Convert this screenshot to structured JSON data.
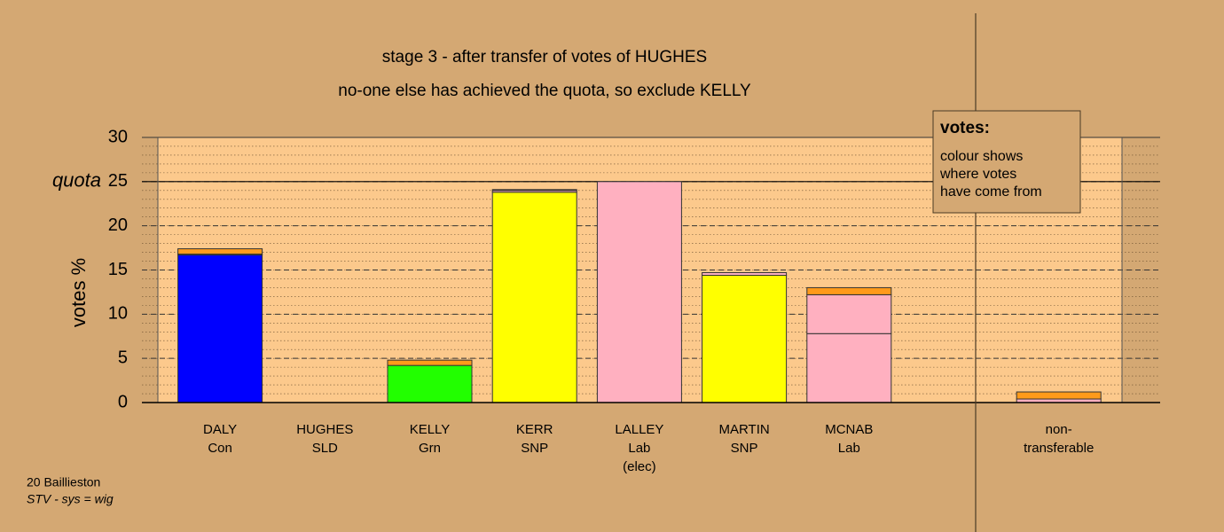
{
  "chart_data": {
    "type": "bar",
    "stacked": true,
    "title": "stage 3 - after transfer of votes of HUGHES",
    "subtitle": "no-one else has achieved the quota, so exclude KELLY",
    "y_label": "votes %",
    "categories": [
      [
        "DALY",
        "Con"
      ],
      [
        "HUGHES",
        "SLD"
      ],
      [
        "KELLY",
        "Grn"
      ],
      [
        "KERR",
        "SNP"
      ],
      [
        "LALLEY",
        "Lab",
        "(elec)"
      ],
      [
        "MARTIN",
        "SNP"
      ],
      [
        "MCNAB",
        "Lab"
      ],
      null,
      [
        "non-",
        "transferable"
      ]
    ],
    "series": [
      {
        "colors": [
          "#0000ff",
          "#ff9a1a",
          "#22ff00",
          "#ffff00",
          "#ffb0c0",
          "#ffff00",
          "#ffb0c0",
          null,
          "#ff9a1a"
        ],
        "values": [
          16.7,
          0,
          4.2,
          23.8,
          25.0,
          14.4,
          7.8,
          null,
          0
        ]
      },
      {
        "color": "#ffb0c0",
        "values": [
          0.1,
          0,
          0,
          0.2,
          0,
          0.3,
          4.4,
          null,
          0.4
        ]
      },
      {
        "color": "#ff9a1a",
        "values": [
          0.6,
          0,
          0.6,
          0.1,
          0,
          0,
          0.8,
          null,
          0.8
        ]
      }
    ],
    "ylim": [
      0,
      30
    ],
    "yticks": [
      0,
      5,
      10,
      15,
      20,
      25,
      30
    ],
    "minor_grid_step": 1,
    "quota": {
      "value": 25,
      "label": "quota"
    },
    "legend": {
      "title": "votes:",
      "lines": [
        "colour shows",
        "where votes",
        "have come from"
      ]
    },
    "footer": [
      "20 Baillieston",
      "STV - sys = wig"
    ]
  }
}
